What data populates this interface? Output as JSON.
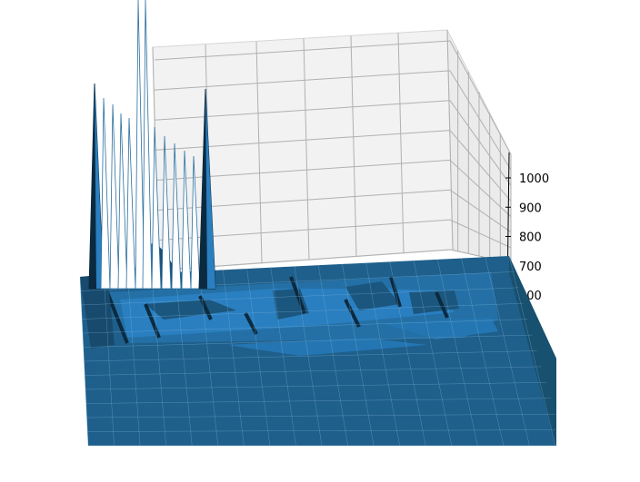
{
  "chart_data": {
    "type": "surface3d",
    "title": "",
    "xlabel": "",
    "ylabel": "",
    "zlabel": "",
    "z_ticks": [
      {
        "value": 600,
        "label": "600"
      },
      {
        "value": 700,
        "label": "700"
      },
      {
        "value": 800,
        "label": "800"
      },
      {
        "value": 900,
        "label": "900"
      },
      {
        "value": 1000,
        "label": "1000"
      }
    ],
    "zlim_visible": [
      560,
      1100
    ],
    "grid": true,
    "surface_color": "#1f5f8b",
    "surface_highlight": "#2a7fc0",
    "surface_shadow": "#0b2a40",
    "pane_color": "#f2f2f2",
    "grid_color": "#b0b0b0",
    "peaks": [
      {
        "description": "tall spike cluster",
        "relative_height": 1.0
      },
      {
        "description": "secondary spike",
        "relative_height": 0.72
      },
      {
        "description": "rounded hill",
        "relative_height": 0.12
      }
    ]
  }
}
